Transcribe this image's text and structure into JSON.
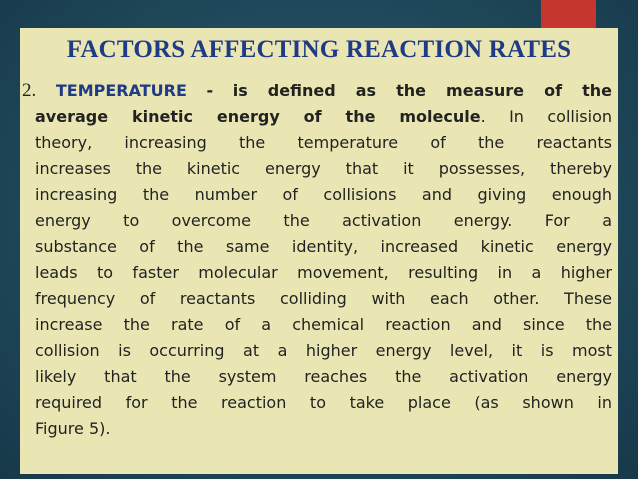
{
  "slide": {
    "title": "FACTORS AFFECTING REACTION RATES",
    "number": "2.",
    "keyword": "TEMPERATURE",
    "separator": "-",
    "definition": "is defined as the measure of the average kinetic energy of the molecule",
    "lines": [
      "is defined as the measure of the",
      "average kinetic energy of the molecule",
      ". In collision",
      "theory, increasing the temperature of the reactants",
      "increases the kinetic energy that it possesses, thereby",
      "increasing the number of collisions and giving enough",
      "energy to overcome the activation energy. For a",
      "substance of the same identity, increased kinetic energy",
      "leads to faster molecular movement, resulting in a higher",
      "frequency of reactants colliding with each other. These",
      "increase the rate of a chemical reaction and since the",
      "collision is occurring at a higher energy level, it is most",
      "likely that the system reaches the activation energy",
      "required for the reaction to take place (as shown in",
      "Figure 5)."
    ]
  },
  "colors": {
    "background": "#1f4a5b",
    "panel": "#eae6b3",
    "accent_tab": "#c5372e",
    "title": "#1f3a86"
  }
}
